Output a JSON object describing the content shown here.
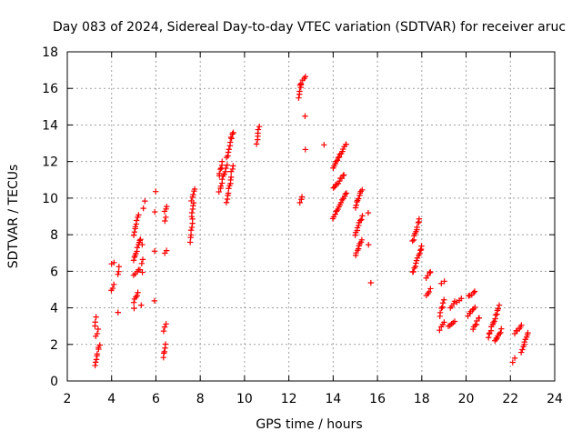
{
  "chart_data": {
    "type": "scatter",
    "title": "Day 083 of 2024, Sidereal Day-to-day VTEC variation (SDTVAR) for receiver aruc",
    "xlabel": "GPS time / hours",
    "ylabel": "SDTVAR / TECUs",
    "xlim": [
      2,
      24
    ],
    "ylim": [
      0,
      18
    ],
    "xticks": [
      "2",
      "4",
      "6",
      "8",
      "10",
      "12",
      "14",
      "16",
      "18",
      "20",
      "22",
      "24"
    ],
    "yticks": [
      "0",
      "2",
      "4",
      "6",
      "8",
      "10",
      "12",
      "14",
      "16",
      "18"
    ],
    "grid": true,
    "marker": "+",
    "color": "#ff0000",
    "segments": [
      [
        3.25,
        3.3,
        3.0,
        3.5
      ],
      [
        3.3,
        3.4,
        2.4,
        2.8
      ],
      [
        3.25,
        3.45,
        0.9,
        2.0
      ],
      [
        4.0,
        4.1,
        6.4,
        6.5
      ],
      [
        4.0,
        4.1,
        4.9,
        5.3
      ],
      [
        4.3,
        4.35,
        5.8,
        6.2
      ],
      [
        4.3,
        4.3,
        3.7,
        3.7
      ],
      [
        5.0,
        5.2,
        8.0,
        9.1
      ],
      [
        5.0,
        5.3,
        6.6,
        7.8
      ],
      [
        5.0,
        5.3,
        5.8,
        6.1
      ],
      [
        5.0,
        5.2,
        4.3,
        4.8
      ],
      [
        5.0,
        5.0,
        4.0,
        4.0
      ],
      [
        5.4,
        5.4,
        7.5,
        7.5
      ],
      [
        5.35,
        5.4,
        6.4,
        6.6
      ],
      [
        5.4,
        5.4,
        5.9,
        5.9
      ],
      [
        5.35,
        5.35,
        4.2,
        4.2
      ],
      [
        5.45,
        5.5,
        9.5,
        9.8
      ],
      [
        5.95,
        6.0,
        10.4,
        10.4
      ],
      [
        5.95,
        5.95,
        9.3,
        9.3
      ],
      [
        5.95,
        5.95,
        7.1,
        7.1
      ],
      [
        5.95,
        5.95,
        4.4,
        4.4
      ],
      [
        6.4,
        6.5,
        9.3,
        9.6
      ],
      [
        6.4,
        6.45,
        8.8,
        9.0
      ],
      [
        6.4,
        6.5,
        7.0,
        7.1
      ],
      [
        6.35,
        6.45,
        2.7,
        3.1
      ],
      [
        6.35,
        6.45,
        1.3,
        2.0
      ],
      [
        7.55,
        7.65,
        7.6,
        8.8
      ],
      [
        7.6,
        7.7,
        9.0,
        9.7
      ],
      [
        7.6,
        7.75,
        9.9,
        10.5
      ],
      [
        8.85,
        9.0,
        11.2,
        12.0
      ],
      [
        8.85,
        9.0,
        10.4,
        10.8
      ],
      [
        9.0,
        9.2,
        11.0,
        11.8
      ],
      [
        9.2,
        9.4,
        9.8,
        11.2
      ],
      [
        9.2,
        9.4,
        12.2,
        13.2
      ],
      [
        9.4,
        9.5,
        11.4,
        11.8
      ],
      [
        9.4,
        9.5,
        13.3,
        13.6
      ],
      [
        10.55,
        10.65,
        13.0,
        13.9
      ],
      [
        12.45,
        12.55,
        15.5,
        16.2
      ],
      [
        12.5,
        12.75,
        16.2,
        16.6
      ],
      [
        12.5,
        12.6,
        9.8,
        10.1
      ],
      [
        12.75,
        12.75,
        14.5,
        14.5
      ],
      [
        12.75,
        12.75,
        12.6,
        12.6
      ],
      [
        13.55,
        13.6,
        12.9,
        12.9
      ],
      [
        14.0,
        14.6,
        11.7,
        13.0
      ],
      [
        14.0,
        14.5,
        10.5,
        11.3
      ],
      [
        14.0,
        14.6,
        8.9,
        10.3
      ],
      [
        15.0,
        15.3,
        9.5,
        10.5
      ],
      [
        15.0,
        15.3,
        8.0,
        9.0
      ],
      [
        15.0,
        15.3,
        6.9,
        7.7
      ],
      [
        15.6,
        15.6,
        9.2,
        9.2
      ],
      [
        15.6,
        15.6,
        7.5,
        7.5
      ],
      [
        15.7,
        15.7,
        5.4,
        5.4
      ],
      [
        17.6,
        17.9,
        7.6,
        8.9
      ],
      [
        17.6,
        18.0,
        5.9,
        7.4
      ],
      [
        18.2,
        18.4,
        5.6,
        6.0
      ],
      [
        18.2,
        18.4,
        4.7,
        5.0
      ],
      [
        18.8,
        19.0,
        3.6,
        4.4
      ],
      [
        18.8,
        19.0,
        2.8,
        3.2
      ],
      [
        18.9,
        19.0,
        5.3,
        5.5
      ],
      [
        19.2,
        19.5,
        3.0,
        3.3
      ],
      [
        19.3,
        19.5,
        4.0,
        4.4
      ],
      [
        19.6,
        19.8,
        4.3,
        4.5
      ],
      [
        20.1,
        20.4,
        4.6,
        4.9
      ],
      [
        20.1,
        20.4,
        3.6,
        4.0
      ],
      [
        20.3,
        20.6,
        2.8,
        3.5
      ],
      [
        21.0,
        21.5,
        2.4,
        4.1
      ],
      [
        21.3,
        21.6,
        2.2,
        2.8
      ],
      [
        22.2,
        22.5,
        2.6,
        3.1
      ],
      [
        22.1,
        22.2,
        1.0,
        1.2
      ],
      [
        22.5,
        22.8,
        1.6,
        2.6
      ]
    ]
  }
}
